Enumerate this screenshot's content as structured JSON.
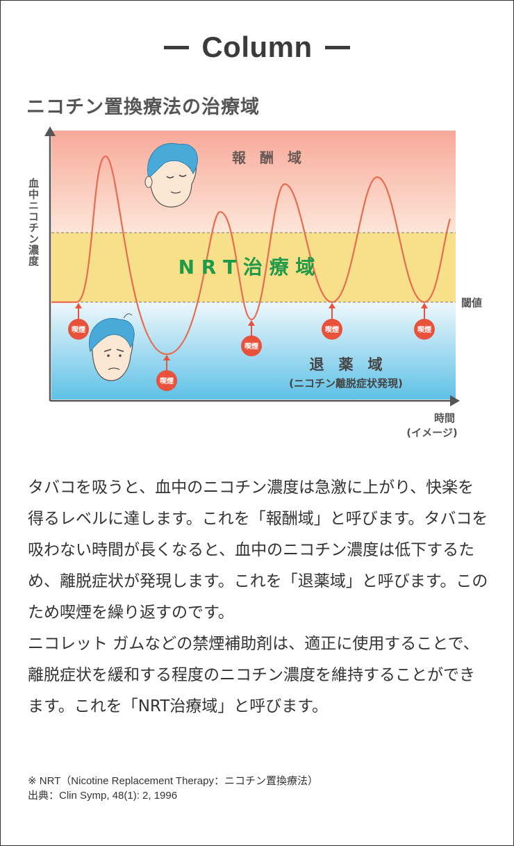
{
  "header": {
    "title": "Column"
  },
  "chart": {
    "title": "ニコチン置換療法の治療域",
    "y_axis_label": "血中ニコチン濃度",
    "x_axis_label": "時間",
    "x_axis_sub": "(イメージ)",
    "threshold_label": "閾値",
    "zones": {
      "reward": "報　酬　域",
      "nrt": "N R T 治 療 域",
      "withdrawal": "退　薬　域",
      "withdrawal_sub": "(ニコチン離脱症状発現)"
    },
    "smoke_marker": "喫煙",
    "colors": {
      "curve": "#e96a4e",
      "marker": "#e8523b",
      "nrt_text": "#1f9a48",
      "nrt_band": "#f8e08a"
    },
    "icons": [
      "happy-face-icon",
      "distressed-face-icon"
    ]
  },
  "body": {
    "paragraph1": "タバコを吸うと、血中のニコチン濃度は急激に上がり、快楽を得るレベルに達します。これを「報酬域」と呼びます。タバコを吸わない時間が長くなると、血中のニコチン濃度は低下するため、離脱症状が発現します。これを「退薬域」と呼びます。このため喫煙を繰り返すのです。",
    "paragraph2": "ニコレット ガムなどの禁煙補助剤は、適正に使用することで、離脱症状を緩和する程度のニコチン濃度を維持することができます。これを「NRT治療域」と呼びます。"
  },
  "notes": {
    "definition": "※ NRT（Nicotine Replacement Therapy：ニコチン置換療法）",
    "source": "出典：Clin Symp, 48(1): 2, 1996"
  }
}
